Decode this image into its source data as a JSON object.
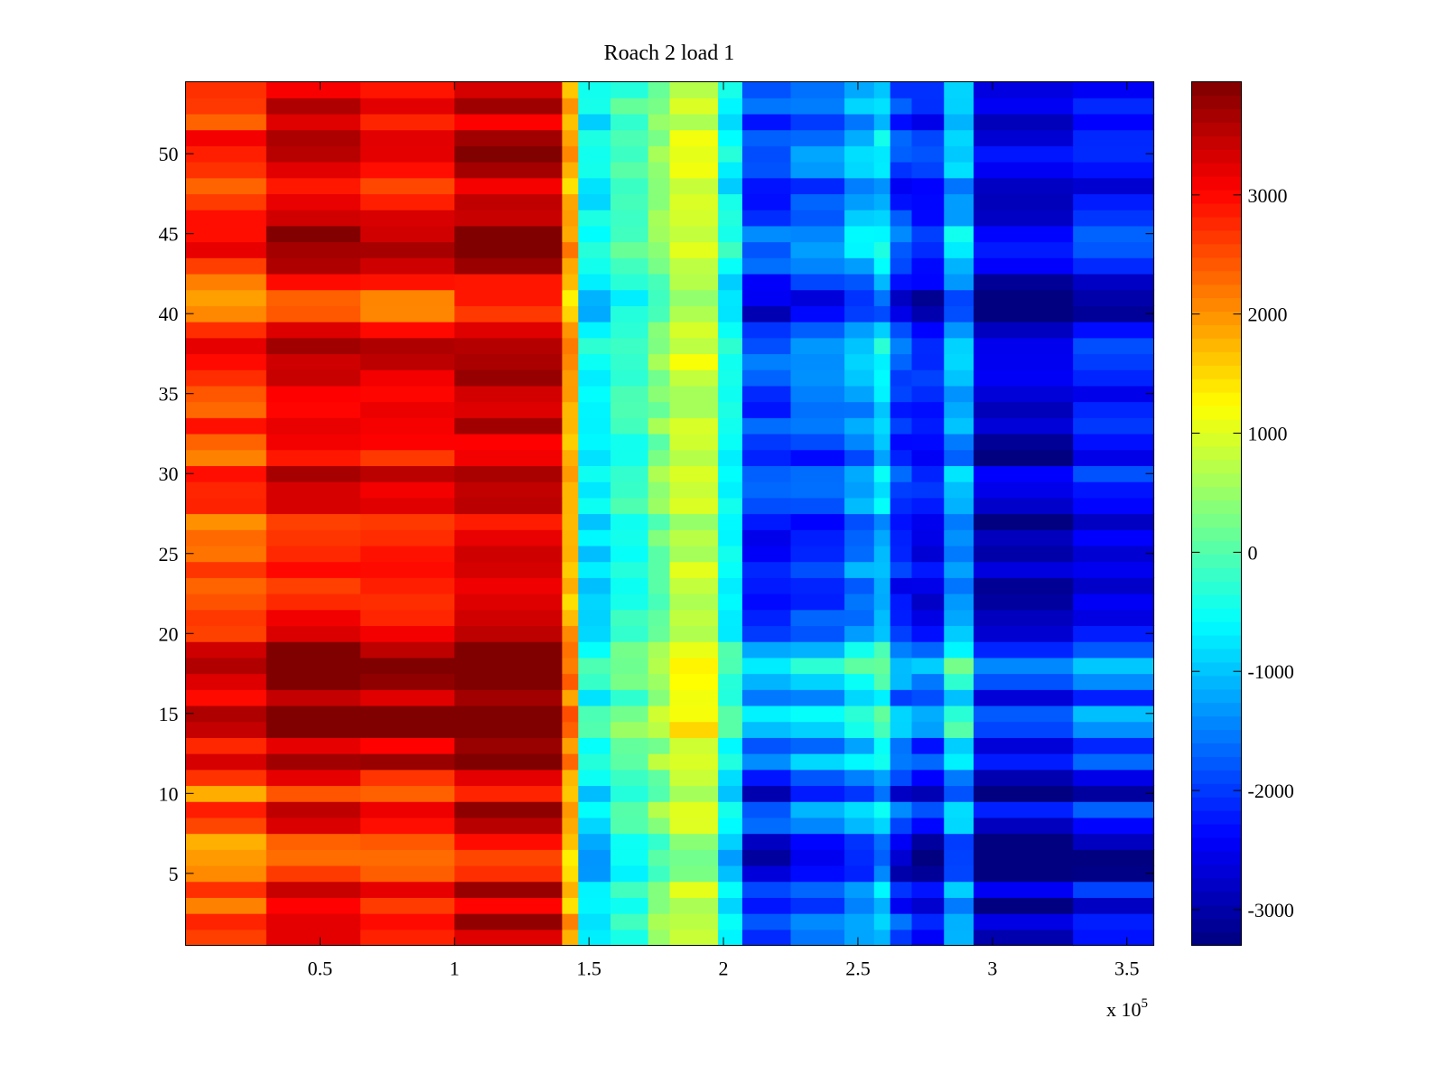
{
  "chart_data": {
    "type": "heatmap",
    "title": "Roach 2 load 1",
    "xlabel": "",
    "ylabel": "",
    "x_ticks": [
      "0.5",
      "1",
      "1.5",
      "2",
      "2.5",
      "3",
      "3.5"
    ],
    "x_tick_values": [
      50000,
      100000,
      150000,
      200000,
      250000,
      300000,
      350000
    ],
    "x_multiplier_base": "x 10",
    "x_multiplier_exp": "5",
    "xlim": [
      0,
      360000
    ],
    "y_ticks": [
      "5",
      "10",
      "15",
      "20",
      "25",
      "30",
      "35",
      "40",
      "45",
      "50"
    ],
    "y_tick_values": [
      5,
      10,
      15,
      20,
      25,
      30,
      35,
      40,
      45,
      50
    ],
    "ylim": [
      0.5,
      54.5
    ],
    "rows": 54,
    "colorbar": {
      "colormap": "jet",
      "range": [
        -3300,
        3950
      ],
      "ticks": [
        "-3000",
        "-2000",
        "-1000",
        "0",
        "1000",
        "2000",
        "3000"
      ],
      "tick_values": [
        -3000,
        -2000,
        -1000,
        0,
        1000,
        2000,
        3000
      ]
    },
    "column_bands": [
      {
        "x_start": 0,
        "x_end": 30000,
        "value": 2600
      },
      {
        "x_start": 30000,
        "x_end": 65000,
        "value": 3200
      },
      {
        "x_start": 65000,
        "x_end": 100000,
        "value": 3000
      },
      {
        "x_start": 100000,
        "x_end": 140000,
        "value": 3400
      },
      {
        "x_start": 140000,
        "x_end": 146000,
        "value": 1800
      },
      {
        "x_start": 146000,
        "x_end": 158000,
        "value": -700
      },
      {
        "x_start": 158000,
        "x_end": 172000,
        "value": -200
      },
      {
        "x_start": 172000,
        "x_end": 180000,
        "value": 300
      },
      {
        "x_start": 180000,
        "x_end": 198000,
        "value": 800
      },
      {
        "x_start": 198000,
        "x_end": 207000,
        "value": -600
      },
      {
        "x_start": 207000,
        "x_end": 225000,
        "value": -2000
      },
      {
        "x_start": 225000,
        "x_end": 245000,
        "value": -1700
      },
      {
        "x_start": 245000,
        "x_end": 256000,
        "value": -1300
      },
      {
        "x_start": 256000,
        "x_end": 262000,
        "value": -900
      },
      {
        "x_start": 262000,
        "x_end": 270000,
        "value": -2000
      },
      {
        "x_start": 270000,
        "x_end": 282000,
        "value": -2300
      },
      {
        "x_start": 282000,
        "x_end": 293000,
        "value": -1200
      },
      {
        "x_start": 293000,
        "x_end": 330000,
        "value": -2800
      },
      {
        "x_start": 330000,
        "x_end": 360000,
        "value": -2300
      }
    ],
    "row_offsets": [
      0,
      400,
      -600,
      300,
      -1500,
      -1800,
      -1200,
      300,
      800,
      -1500,
      -200,
      1300,
      500,
      2000,
      2200,
      500,
      1800,
      2400,
      1500,
      200,
      -300,
      -500,
      -800,
      0,
      -400,
      -600,
      -900,
      200,
      500,
      600,
      -800,
      -300,
      500,
      -100,
      0,
      400,
      700,
      800,
      200,
      -1500,
      -1400,
      -600,
      400,
      900,
      1000,
      300,
      -200,
      -500,
      400,
      700,
      600,
      -200,
      400,
      200
    ]
  }
}
